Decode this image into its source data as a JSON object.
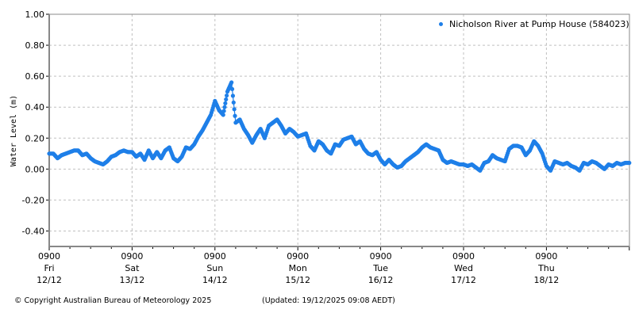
{
  "chart_data": {
    "type": "scatter",
    "title": "",
    "xlabel": "",
    "ylabel": "Water Level (m)",
    "ylim": [
      -0.5,
      1.0
    ],
    "yticks": [
      1.0,
      0.8,
      0.6,
      0.4,
      0.2,
      0.0,
      -0.2,
      -0.4
    ],
    "ytick_labels": [
      "1.00",
      "0.80",
      "0.60",
      "0.40",
      "0.20",
      "0.00",
      "-0.20",
      "-0.40"
    ],
    "grid": true,
    "legend_position": "top-right",
    "xticks": [
      {
        "time": "0900",
        "day": "Fri",
        "date": "12/12"
      },
      {
        "time": "0900",
        "day": "Sat",
        "date": "13/12"
      },
      {
        "time": "0900",
        "day": "Sun",
        "date": "14/12"
      },
      {
        "time": "0900",
        "day": "Mon",
        "date": "15/12"
      },
      {
        "time": "0900",
        "day": "Tue",
        "date": "16/12"
      },
      {
        "time": "0900",
        "day": "Wed",
        "date": "17/12"
      },
      {
        "time": "0900",
        "day": "Thu",
        "date": "18/12"
      }
    ],
    "series": [
      {
        "name": "Nicholson River at Pump House (584023)",
        "color": "#1e7fe8",
        "x_days_since_fri_0900": [
          0.0,
          0.05,
          0.1,
          0.15,
          0.2,
          0.25,
          0.3,
          0.35,
          0.4,
          0.45,
          0.5,
          0.55,
          0.6,
          0.65,
          0.7,
          0.75,
          0.8,
          0.85,
          0.9,
          0.95,
          1.0,
          1.05,
          1.1,
          1.15,
          1.2,
          1.25,
          1.3,
          1.35,
          1.4,
          1.45,
          1.5,
          1.55,
          1.6,
          1.65,
          1.7,
          1.75,
          1.8,
          1.85,
          1.9,
          1.95,
          2.0,
          2.05,
          2.1,
          2.15,
          2.2,
          2.25,
          2.3,
          2.35,
          2.4,
          2.45,
          2.5,
          2.55,
          2.6,
          2.65,
          2.7,
          2.75,
          2.8,
          2.85,
          2.9,
          2.95,
          3.0,
          3.05,
          3.1,
          3.15,
          3.2,
          3.25,
          3.3,
          3.35,
          3.4,
          3.45,
          3.5,
          3.55,
          3.6,
          3.65,
          3.7,
          3.75,
          3.8,
          3.85,
          3.9,
          3.95,
          4.0,
          4.05,
          4.1,
          4.15,
          4.2,
          4.25,
          4.3,
          4.35,
          4.4,
          4.45,
          4.5,
          4.55,
          4.6,
          4.65,
          4.7,
          4.75,
          4.8,
          4.85,
          4.9,
          4.95,
          5.0,
          5.05,
          5.1,
          5.15,
          5.2,
          5.25,
          5.3,
          5.35,
          5.4,
          5.45,
          5.5,
          5.55,
          5.6,
          5.65,
          5.7,
          5.75,
          5.8,
          5.85,
          5.9,
          5.95,
          6.0,
          6.05,
          6.1,
          6.15,
          6.2,
          6.25,
          6.3,
          6.35,
          6.4,
          6.45,
          6.5,
          6.55,
          6.6,
          6.65,
          6.7,
          6.75,
          6.8,
          6.85,
          6.9,
          6.95,
          7.0
        ],
        "y": [
          0.1,
          0.1,
          0.07,
          0.09,
          0.1,
          0.11,
          0.12,
          0.12,
          0.09,
          0.1,
          0.07,
          0.05,
          0.04,
          0.03,
          0.05,
          0.08,
          0.09,
          0.11,
          0.12,
          0.11,
          0.11,
          0.08,
          0.1,
          0.06,
          0.12,
          0.07,
          0.11,
          0.07,
          0.12,
          0.14,
          0.07,
          0.05,
          0.08,
          0.14,
          0.13,
          0.16,
          0.21,
          0.25,
          0.3,
          0.35,
          0.44,
          0.38,
          0.35,
          0.5,
          0.56,
          0.3,
          0.32,
          0.26,
          0.22,
          0.17,
          0.22,
          0.26,
          0.2,
          0.28,
          0.3,
          0.32,
          0.28,
          0.23,
          0.26,
          0.24,
          0.21,
          0.22,
          0.23,
          0.15,
          0.12,
          0.18,
          0.16,
          0.12,
          0.1,
          0.16,
          0.15,
          0.19,
          0.2,
          0.21,
          0.16,
          0.18,
          0.13,
          0.1,
          0.09,
          0.11,
          0.06,
          0.03,
          0.06,
          0.03,
          0.01,
          0.02,
          0.05,
          0.07,
          0.09,
          0.11,
          0.14,
          0.16,
          0.14,
          0.13,
          0.12,
          0.06,
          0.04,
          0.05,
          0.04,
          0.03,
          0.03,
          0.02,
          0.03,
          0.01,
          -0.01,
          0.04,
          0.05,
          0.09,
          0.07,
          0.06,
          0.05,
          0.13,
          0.15,
          0.15,
          0.14,
          0.09,
          0.12,
          0.18,
          0.15,
          0.1,
          0.02,
          -0.01,
          0.05,
          0.04,
          0.03,
          0.04,
          0.02,
          0.01,
          -0.01,
          0.04,
          0.03,
          0.05,
          0.04,
          0.02,
          0.0,
          0.03,
          0.02,
          0.04,
          0.03,
          0.04,
          0.04,
          0.04
        ]
      }
    ]
  },
  "legend": {
    "label": "Nicholson River at Pump House (584023)",
    "color": "#1e7fe8"
  },
  "footer": {
    "copyright": "© Copyright Australian Bureau of Meteorology 2025",
    "updated": "(Updated: 19/12/2025 09:08 AEDT)"
  }
}
